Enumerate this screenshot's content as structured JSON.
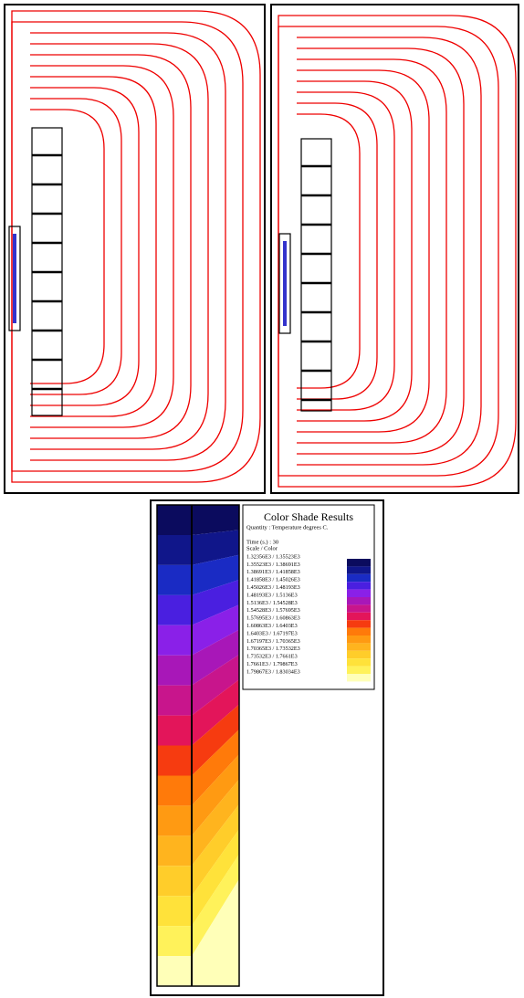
{
  "legend": {
    "title": "Color Shade Results",
    "quantity": "Quantity : Temperature degrees C.",
    "time": "Time (s.) : 30",
    "scale_header": "Scale / Color",
    "rows": [
      {
        "range": "1.32356E3  /  1.35523E3",
        "color": "#0b0b5e"
      },
      {
        "range": "1.35523E3  /  1.38691E3",
        "color": "#10168a"
      },
      {
        "range": "1.38691E3  /  1.41858E3",
        "color": "#1a2bc4"
      },
      {
        "range": "1.41858E3  /  1.45026E3",
        "color": "#4a1fe0"
      },
      {
        "range": "1.45026E3  /  1.48193E3",
        "color": "#8a20e8"
      },
      {
        "range": "1.48193E3  /  1.5136E3",
        "color": "#a817b8"
      },
      {
        "range": "1.5136E3  /  1.54528E3",
        "color": "#c8158c"
      },
      {
        "range": "1.54528E3  /  1.57695E3",
        "color": "#e3155a"
      },
      {
        "range": "1.57695E3  /  1.60863E3",
        "color": "#f63b10"
      },
      {
        "range": "1.60863E3  /  1.6403E3",
        "color": "#ff7a0a"
      },
      {
        "range": "1.6403E3  /  1.67197E3",
        "color": "#ff9a12"
      },
      {
        "range": "1.67197E3  /  1.70365E3",
        "color": "#ffb41e"
      },
      {
        "range": "1.70365E3  /  1.73532E3",
        "color": "#ffcd2a"
      },
      {
        "range": "1.73532E3  /  1.7661E3",
        "color": "#ffe23a"
      },
      {
        "range": "1.7661E3  /  1.79867E3",
        "color": "#fff25a"
      },
      {
        "range": "1.79867E3  /  1.83034E3",
        "color": "#ffffb8"
      }
    ]
  }
}
